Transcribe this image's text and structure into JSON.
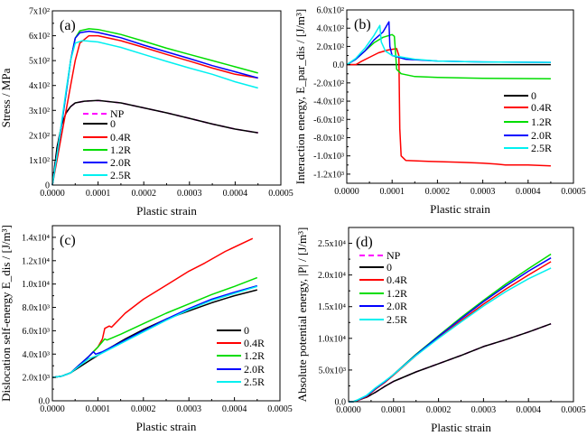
{
  "colors": {
    "NP": "#ff00ff",
    "0": "#000000",
    "0.4R": "#ff0000",
    "1.2R": "#00dd00",
    "2.0R": "#0000ff",
    "2.5R": "#00f0f0"
  },
  "chart_data": [
    {
      "type": "line",
      "panel_label": "(a)",
      "xlabel": "Plastic strain",
      "ylabel": "Stress / MPa",
      "xlim": [
        0,
        0.0005
      ],
      "ylim": [
        0,
        700
      ],
      "xticks": [
        0,
        0.0001,
        0.0002,
        0.0003,
        0.0004,
        0.0005
      ],
      "xtick_labels": [
        "0.0000",
        "0.0001",
        "0.0002",
        "0.0003",
        "0.0004",
        "0.0005"
      ],
      "yticks": [
        0,
        100,
        200,
        300,
        400,
        500,
        600,
        700
      ],
      "ytick_labels": [
        "0",
        "1x10²",
        "2x10²",
        "3x10²",
        "4x10²",
        "5x10²",
        "6x10²",
        "7x10²"
      ],
      "legend": "bottom-left",
      "series": [
        {
          "name": "NP",
          "dashed": true,
          "x": [
            0,
            1e-05,
            2e-05,
            3e-05,
            4e-05,
            5e-05,
            7e-05,
            0.0001,
            0.00015,
            0.0002,
            0.00025,
            0.0003,
            0.00035,
            0.0004,
            0.00045
          ],
          "y": [
            0,
            150,
            240,
            290,
            315,
            330,
            337,
            340,
            330,
            310,
            290,
            268,
            245,
            225,
            210
          ]
        },
        {
          "name": "0",
          "x": [
            0,
            1e-05,
            2e-05,
            3e-05,
            4e-05,
            5e-05,
            7e-05,
            0.0001,
            0.00015,
            0.0002,
            0.00025,
            0.0003,
            0.00035,
            0.0004,
            0.00045
          ],
          "y": [
            0,
            150,
            240,
            290,
            315,
            330,
            337,
            340,
            330,
            310,
            290,
            268,
            245,
            225,
            210
          ]
        },
        {
          "name": "0.4R",
          "x": [
            0,
            1e-05,
            2e-05,
            3e-05,
            4e-05,
            5e-05,
            6e-05,
            8e-05,
            0.0001,
            0.00015,
            0.0002,
            0.00025,
            0.0003,
            0.00035,
            0.0004,
            0.00045
          ],
          "y": [
            0,
            100,
            200,
            300,
            400,
            500,
            570,
            600,
            600,
            580,
            553,
            525,
            498,
            470,
            445,
            430
          ]
        },
        {
          "name": "1.2R",
          "x": [
            0,
            1e-05,
            2e-05,
            3e-05,
            4e-05,
            5e-05,
            6e-05,
            8e-05,
            0.0001,
            0.00015,
            0.0002,
            0.00025,
            0.0003,
            0.00035,
            0.0004,
            0.00045
          ],
          "y": [
            0,
            120,
            240,
            370,
            500,
            590,
            620,
            628,
            625,
            605,
            578,
            550,
            525,
            500,
            475,
            450
          ]
        },
        {
          "name": "2.0R",
          "x": [
            0,
            1e-05,
            2e-05,
            3e-05,
            4e-05,
            5e-05,
            6e-05,
            8e-05,
            0.0001,
            0.00015,
            0.0002,
            0.00025,
            0.0003,
            0.00035,
            0.0004,
            0.00045
          ],
          "y": [
            0,
            120,
            240,
            370,
            500,
            590,
            612,
            618,
            613,
            592,
            562,
            535,
            508,
            480,
            455,
            430
          ]
        },
        {
          "name": "2.5R",
          "x": [
            0,
            1e-05,
            2e-05,
            3e-05,
            4e-05,
            5e-05,
            6.5e-05,
            7e-05,
            0.0001,
            0.00015,
            0.0002,
            0.00025,
            0.0003,
            0.00035,
            0.0004,
            0.00045
          ],
          "y": [
            0,
            120,
            250,
            380,
            500,
            570,
            580,
            580,
            575,
            553,
            525,
            497,
            470,
            445,
            415,
            390
          ]
        }
      ]
    },
    {
      "type": "line",
      "panel_label": "(b)",
      "xlabel": "Plastic strain",
      "ylabel": "Interaction energy, E_par_dis / [J/m³]",
      "xlim": [
        0,
        0.0005
      ],
      "ylim": [
        -1300,
        600
      ],
      "xticks": [
        0,
        0.0001,
        0.0002,
        0.0003,
        0.0004,
        0.0005
      ],
      "xtick_labels": [
        "0.0000",
        "0.0001",
        "0.0002",
        "0.0003",
        "0.0004",
        "0.0005"
      ],
      "yticks": [
        -1200,
        -1000,
        -800,
        -600,
        -400,
        -200,
        0,
        200,
        400,
        600
      ],
      "ytick_labels": [
        "-1.2x10³",
        "-1.0x10³",
        "-8.0x10²",
        "-6.0x10²",
        "-4.0x10²",
        "-2.0x10²",
        "0.0",
        "2.0x10²",
        "4.0x10²",
        "6.0x10²"
      ],
      "legend": "right",
      "series": [
        {
          "name": "0",
          "x": [
            0,
            0.00045
          ],
          "y": [
            0,
            0
          ]
        },
        {
          "name": "0.4R",
          "x": [
            0,
            2e-05,
            3e-05,
            5e-05,
            7e-05,
            9e-05,
            0.00011,
            0.000115,
            0.000117,
            0.00012,
            0.00013,
            0.00018,
            0.00025,
            0.0003,
            0.00033,
            0.00035,
            0.0004,
            0.00045
          ],
          "y": [
            0,
            0,
            30,
            80,
            130,
            160,
            175,
            100,
            -700,
            -1000,
            -1050,
            -1060,
            -1070,
            -1080,
            -1090,
            -1100,
            -1100,
            -1110
          ]
        },
        {
          "name": "1.2R",
          "x": [
            0,
            2e-05,
            4e-05,
            6e-05,
            8e-05,
            0.0001,
            0.000105,
            0.000108,
            0.00011,
            0.00012,
            0.00015,
            0.0002,
            0.0003,
            0.00045
          ],
          "y": [
            0,
            60,
            150,
            240,
            300,
            330,
            310,
            100,
            -50,
            -100,
            -130,
            -140,
            -150,
            -155
          ]
        },
        {
          "name": "2.0R",
          "x": [
            0,
            2e-05,
            4e-05,
            6e-05,
            8e-05,
            9.3e-05,
            9.5e-05,
            0.0001,
            0.00013,
            0.0002,
            0.0003,
            0.00045
          ],
          "y": [
            0,
            60,
            150,
            270,
            360,
            470,
            200,
            100,
            60,
            40,
            30,
            25
          ]
        },
        {
          "name": "2.5R",
          "x": [
            0,
            2e-05,
            4e-05,
            6e-05,
            7.3e-05,
            7.6e-05,
            8.5e-05,
            0.0001,
            0.00015,
            0.0002,
            0.0003,
            0.00045
          ],
          "y": [
            0,
            70,
            180,
            320,
            430,
            250,
            150,
            100,
            60,
            40,
            30,
            25
          ]
        }
      ]
    },
    {
      "type": "line",
      "panel_label": "(c)",
      "xlabel": "Plastic strain",
      "ylabel": "Dislocation self-energy E_dis / [J/m³]",
      "xlim": [
        0,
        0.0005
      ],
      "ylim": [
        0,
        15000
      ],
      "xticks": [
        0,
        0.0001,
        0.0002,
        0.0003,
        0.0004,
        0.0005
      ],
      "xtick_labels": [
        "0.0000",
        "0.0001",
        "0.0002",
        "0.0003",
        "0.0004",
        "0.0005"
      ],
      "yticks": [
        0,
        2000,
        4000,
        6000,
        8000,
        10000,
        12000,
        14000
      ],
      "ytick_labels": [
        "0.0",
        "2.0x10³",
        "4.0x10³",
        "6.0x10³",
        "8.0x10³",
        "1.0x10⁴",
        "1.2x10⁴",
        "1.4x10⁴"
      ],
      "legend": "bottom-right",
      "series": [
        {
          "name": "0",
          "x": [
            0,
            2e-05,
            4e-05,
            6e-05,
            8e-05,
            0.0001,
            0.000125,
            0.00016,
            0.0002,
            0.00025,
            0.0003,
            0.00035,
            0.0004,
            0.00045
          ],
          "y": [
            2000,
            2100,
            2400,
            2900,
            3400,
            3900,
            4500,
            5300,
            6100,
            7000,
            7700,
            8400,
            9000,
            9500
          ]
        },
        {
          "name": "0.4R",
          "x": [
            0,
            2e-05,
            4e-05,
            6e-05,
            8e-05,
            0.0001,
            0.00011,
            0.000115,
            0.000125,
            0.00013,
            0.00016,
            0.0002,
            0.00025,
            0.0003,
            0.000335,
            0.00038,
            0.00044
          ],
          "y": [
            2000,
            2100,
            2400,
            3100,
            3800,
            4600,
            5300,
            6200,
            6400,
            6300,
            7500,
            8700,
            9900,
            11100,
            11800,
            12800,
            13900
          ]
        },
        {
          "name": "1.2R",
          "x": [
            0,
            2e-05,
            4e-05,
            6e-05,
            8e-05,
            0.0001,
            0.000115,
            0.00012,
            0.00015,
            0.0002,
            0.00025,
            0.0003,
            0.00035,
            0.0004,
            0.00045
          ],
          "y": [
            2000,
            2100,
            2400,
            3100,
            3800,
            4600,
            5300,
            5200,
            5700,
            6600,
            7500,
            8300,
            9100,
            9800,
            10550
          ]
        },
        {
          "name": "2.0R",
          "x": [
            0,
            2e-05,
            4e-05,
            6e-05,
            8e-05,
            9e-05,
            9.5e-05,
            0.00011,
            0.00014,
            0.0002,
            0.00025,
            0.0003,
            0.00035,
            0.0004,
            0.00045
          ],
          "y": [
            2000,
            2100,
            2400,
            3100,
            3800,
            4200,
            4000,
            4200,
            4800,
            6000,
            7000,
            7900,
            8700,
            9300,
            9850
          ]
        },
        {
          "name": "2.5R",
          "x": [
            0,
            2e-05,
            4e-05,
            6e-05,
            8e-05,
            0.0001,
            0.00014,
            0.0002,
            0.00025,
            0.0003,
            0.00035,
            0.0004,
            0.00045
          ],
          "y": [
            2000,
            2100,
            2400,
            3000,
            3600,
            3900,
            4700,
            5900,
            6900,
            7800,
            8600,
            9200,
            9800
          ]
        }
      ]
    },
    {
      "type": "line",
      "panel_label": "(d)",
      "xlabel": "Plastic strain",
      "ylabel": "Absolute potential energy, |P| / [J/m³]",
      "xlim": [
        0,
        0.0005
      ],
      "ylim": [
        0,
        27500
      ],
      "xticks": [
        0,
        0.0001,
        0.0002,
        0.0003,
        0.0004,
        0.0005
      ],
      "xtick_labels": [
        "0.0000",
        "0.0001",
        "0.0002",
        "0.0003",
        "0.0004",
        "0.0005"
      ],
      "yticks": [
        0,
        5000,
        10000,
        15000,
        20000,
        25000
      ],
      "ytick_labels": [
        "0.0",
        "5.0x10³",
        "1.0x10⁴",
        "1.5x10⁴",
        "2.0x10⁴",
        "2.5x10⁴"
      ],
      "legend": "top-left",
      "series": [
        {
          "name": "NP",
          "dashed": true,
          "x": [
            0,
            1e-05,
            2e-05,
            4e-05,
            6e-05,
            8e-05,
            0.0001,
            0.00015,
            0.0002,
            0.00025,
            0.0003,
            0.00035,
            0.0004,
            0.00045
          ],
          "y": [
            0,
            0,
            200,
            700,
            1500,
            2400,
            3200,
            4700,
            6000,
            7300,
            8700,
            9800,
            11000,
            12300
          ]
        },
        {
          "name": "0",
          "x": [
            0,
            1e-05,
            2e-05,
            4e-05,
            6e-05,
            8e-05,
            0.0001,
            0.00015,
            0.0002,
            0.00025,
            0.0003,
            0.00035,
            0.0004,
            0.00045
          ],
          "y": [
            0,
            0,
            200,
            700,
            1500,
            2400,
            3200,
            4700,
            6000,
            7300,
            8700,
            9800,
            11000,
            12300
          ]
        },
        {
          "name": "0.4R",
          "x": [
            0,
            1e-05,
            2e-05,
            4e-05,
            6e-05,
            8e-05,
            0.0001,
            0.00015,
            0.0002,
            0.00025,
            0.0003,
            0.00035,
            0.0004,
            0.00045
          ],
          "y": [
            0,
            0,
            200,
            800,
            2000,
            3000,
            4200,
            7300,
            10100,
            12800,
            15400,
            17800,
            20000,
            22100
          ]
        },
        {
          "name": "1.2R",
          "x": [
            0,
            1e-05,
            2e-05,
            4e-05,
            6e-05,
            8e-05,
            0.0001,
            0.00015,
            0.0002,
            0.00025,
            0.0003,
            0.00035,
            0.0004,
            0.00045
          ],
          "y": [
            0,
            0,
            250,
            900,
            2100,
            3100,
            4300,
            7500,
            10400,
            13300,
            16000,
            18600,
            21000,
            23300
          ]
        },
        {
          "name": "2.0R",
          "x": [
            0,
            1e-05,
            2e-05,
            4e-05,
            6e-05,
            8e-05,
            0.0001,
            0.00015,
            0.0002,
            0.00025,
            0.0003,
            0.00035,
            0.0004,
            0.00045
          ],
          "y": [
            0,
            0,
            250,
            900,
            2100,
            3100,
            4300,
            7400,
            10300,
            13100,
            15800,
            18300,
            20600,
            22700
          ]
        },
        {
          "name": "2.5R",
          "x": [
            0,
            1e-05,
            2e-05,
            4e-05,
            6e-05,
            8e-05,
            0.0001,
            0.00015,
            0.0002,
            0.00025,
            0.0003,
            0.00035,
            0.0004,
            0.00045
          ],
          "y": [
            0,
            0,
            300,
            1000,
            2200,
            3200,
            4300,
            7300,
            10000,
            12600,
            15100,
            17400,
            19400,
            21100
          ]
        }
      ]
    }
  ]
}
